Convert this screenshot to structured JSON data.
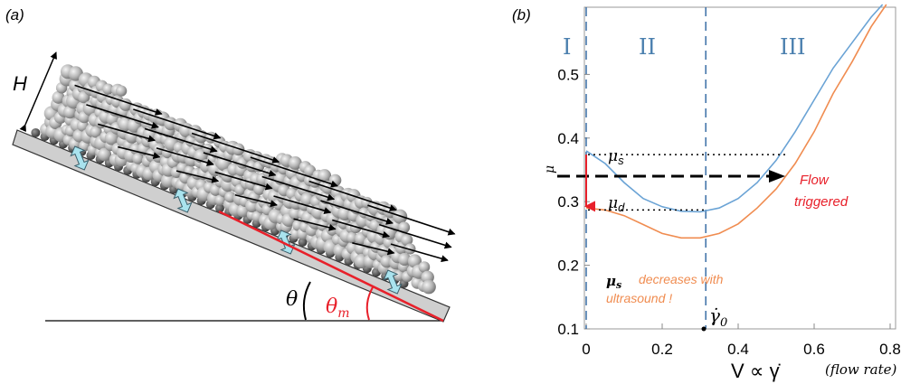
{
  "panel_a": {
    "label": "(a)",
    "height_label": "H",
    "theta_label": "θ",
    "theta_m_label": "θ",
    "theta_m_sub": "m"
  },
  "panel_b": {
    "label": "(b)",
    "regions": [
      "I",
      "II",
      "III"
    ],
    "mu_s_label": "μ",
    "mu_s_sub": "s",
    "mu_d_label": "μ",
    "mu_d_sub": "d",
    "flow_text_1": "Flow",
    "flow_text_2": "triggered",
    "note_bold": "μ",
    "note_bold_sub": "s",
    "note_text_1": "decreases with",
    "note_text_2": "ultrasound !",
    "gamma0_label": "γ̇",
    "gamma0_sub": "0",
    "y_axis_label": "μ",
    "x_axis_label": "V ∝ γ̇",
    "x_axis_note": "(flow rate)",
    "colors": {
      "curve_blue": "#6aa3d5",
      "curve_orange": "#f08c50",
      "red": "#e8202a",
      "dashed_blue": "#3a6ea5"
    }
  },
  "chart_data": {
    "type": "line",
    "xlim": [
      0,
      0.8
    ],
    "ylim": [
      0.1,
      0.6
    ],
    "x_ticks": [
      "0",
      "0.2",
      "0.4",
      "0.6",
      "0.8"
    ],
    "y_ticks": [
      "0.1",
      "0.2",
      "0.3",
      "0.4",
      "0.5"
    ],
    "series": [
      {
        "x": [
          0,
          0.05,
          0.1,
          0.15,
          0.2,
          0.25,
          0.3,
          0.35,
          0.4,
          0.45,
          0.5,
          0.55,
          0.6,
          0.65,
          0.7,
          0.75,
          0.78
        ],
        "y": [
          0.38,
          0.36,
          0.33,
          0.305,
          0.292,
          0.285,
          0.284,
          0.29,
          0.305,
          0.33,
          0.365,
          0.41,
          0.46,
          0.51,
          0.55,
          0.59,
          0.61
        ]
      },
      {
        "x": [
          0,
          0.05,
          0.1,
          0.15,
          0.2,
          0.25,
          0.3,
          0.35,
          0.4,
          0.45,
          0.5,
          0.55,
          0.6,
          0.65,
          0.7,
          0.75,
          0.79
        ],
        "y": [
          0.29,
          0.287,
          0.278,
          0.264,
          0.25,
          0.243,
          0.243,
          0.25,
          0.265,
          0.29,
          0.32,
          0.36,
          0.41,
          0.47,
          0.52,
          0.575,
          0.61
        ]
      }
    ],
    "hlines": [
      0.374,
      0.34,
      0.287
    ],
    "vlines": [
      0.0,
      0.31
    ]
  }
}
